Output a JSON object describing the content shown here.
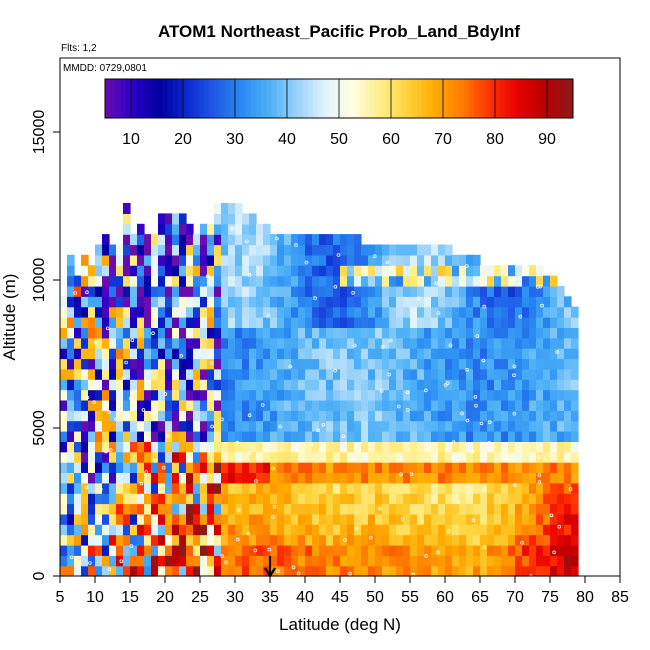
{
  "chart_data": {
    "type": "heatmap",
    "title": "ATOM1 Northeast_Pacific Prob_Land_BdyInf",
    "subtitle_flights": "Flts: 1,2",
    "subtitle_dates": "MMDD: 0729,0801",
    "xlabel": "Latitude (deg N)",
    "ylabel": "Altitude (m)",
    "xlim": [
      5,
      85
    ],
    "ylim": [
      0,
      17500
    ],
    "x_ticks": [
      "5",
      "10",
      "15",
      "20",
      "25",
      "30",
      "35",
      "40",
      "45",
      "50",
      "55",
      "60",
      "65",
      "70",
      "75",
      "80",
      "85"
    ],
    "y_ticks": [
      "0",
      "5000",
      "10000",
      "15000"
    ],
    "colorbar": {
      "range": [
        5,
        95
      ],
      "tick_labels": [
        "10",
        "20",
        "30",
        "40",
        "50",
        "60",
        "70",
        "80",
        "90"
      ],
      "colors": [
        "#6a0dad",
        "#2a00c8",
        "#0000a0",
        "#0a2ad0",
        "#1f5be6",
        "#2a8cf2",
        "#4fb2f7",
        "#9ad2fa",
        "#e2f4fd",
        "#fffde0",
        "#ffef8a",
        "#ffd23a",
        "#ffaa00",
        "#ff7a00",
        "#ff3000",
        "#e60000",
        "#b80000",
        "#8b1a1a"
      ]
    },
    "marker": {
      "label": "Latitude marker",
      "x": 35
    },
    "column_summary": {
      "latitude": [
        5,
        10,
        15,
        20,
        25,
        30,
        35,
        40,
        45,
        50,
        55,
        60,
        65,
        70,
        75,
        78
      ],
      "top_altitude": [
        9800,
        10900,
        11800,
        11800,
        12000,
        12400,
        11500,
        11500,
        11500,
        11000,
        11000,
        11000,
        10500,
        10500,
        10100,
        9000
      ],
      "low_level_prob": [
        40,
        45,
        55,
        65,
        70,
        72,
        72,
        70,
        68,
        68,
        66,
        66,
        65,
        72,
        80,
        85
      ]
    }
  }
}
